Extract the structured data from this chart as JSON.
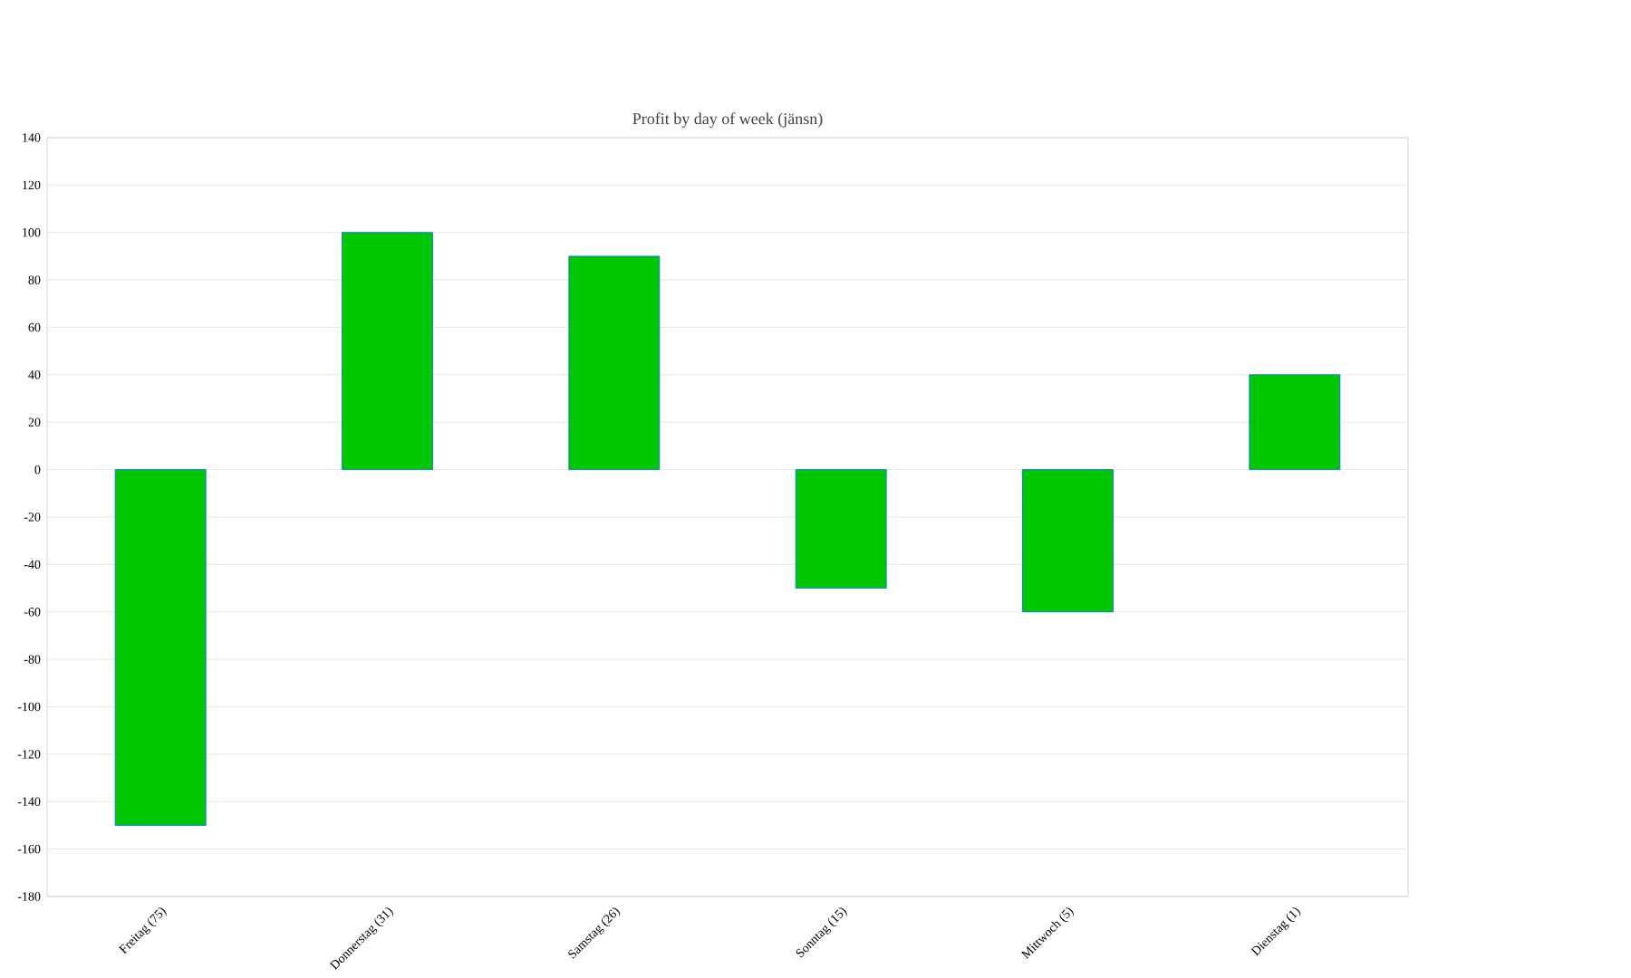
{
  "chart_data": {
    "type": "bar",
    "title": "Profit by day of week  (jänsn)",
    "categories": [
      "Freitag (75)",
      "Donnerstag (31)",
      "Samstag (26)",
      "Sonntag (15)",
      "Mittwoch (5)",
      "Dienstag (1)"
    ],
    "values": [
      -150,
      100,
      90,
      -50,
      -60,
      40
    ],
    "color": "#00c800",
    "ylim": [
      -180,
      140
    ],
    "yticks": [
      -180,
      -160,
      -140,
      -120,
      -100,
      -80,
      -60,
      -40,
      -20,
      0,
      20,
      40,
      60,
      80,
      100,
      120,
      140
    ],
    "grid": "y"
  }
}
